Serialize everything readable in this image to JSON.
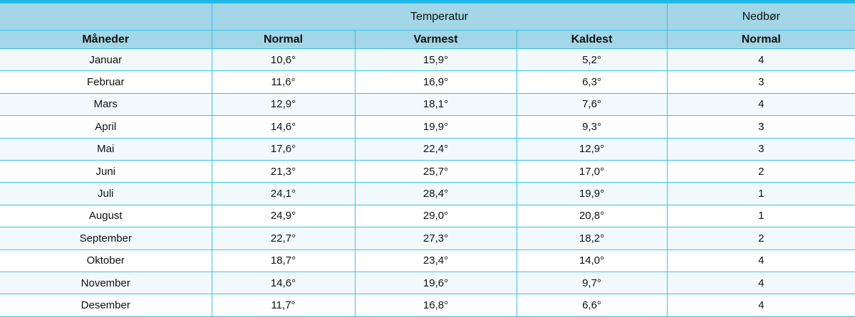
{
  "header": {
    "groups": [
      "Temperatur",
      "Nedbør"
    ],
    "columns": [
      "Måneder",
      "Normal",
      "Varmest",
      "Kaldest",
      "Normal"
    ]
  },
  "table": {
    "rows": [
      [
        "Januar",
        "10,6°",
        "15,9°",
        "5,2°",
        "4"
      ],
      [
        "Februar",
        "11,6°",
        "16,9°",
        "6,3°",
        "3"
      ],
      [
        "Mars",
        "12,9°",
        "18,1°",
        "7,6°",
        "4"
      ],
      [
        "April",
        "14,6°",
        "19,9°",
        "9,3°",
        "3"
      ],
      [
        "Mai",
        "17,6°",
        "22,4°",
        "12,9°",
        "3"
      ],
      [
        "Juni",
        "21,3°",
        "25,7°",
        "17,0°",
        "2"
      ],
      [
        "Juli",
        "24,1°",
        "28,4°",
        "19,9°",
        "1"
      ],
      [
        "August",
        "24,9°",
        "29,0°",
        "20,8°",
        "1"
      ],
      [
        "September",
        "22,7°",
        "27,3°",
        "18,2°",
        "2"
      ],
      [
        "Oktober",
        "18,7°",
        "23,4°",
        "14,0°",
        "4"
      ],
      [
        "November",
        "14,6°",
        "19,6°",
        "9,7°",
        "4"
      ],
      [
        "Desember",
        "11,7°",
        "16,8°",
        "6,6°",
        "4"
      ]
    ]
  }
}
